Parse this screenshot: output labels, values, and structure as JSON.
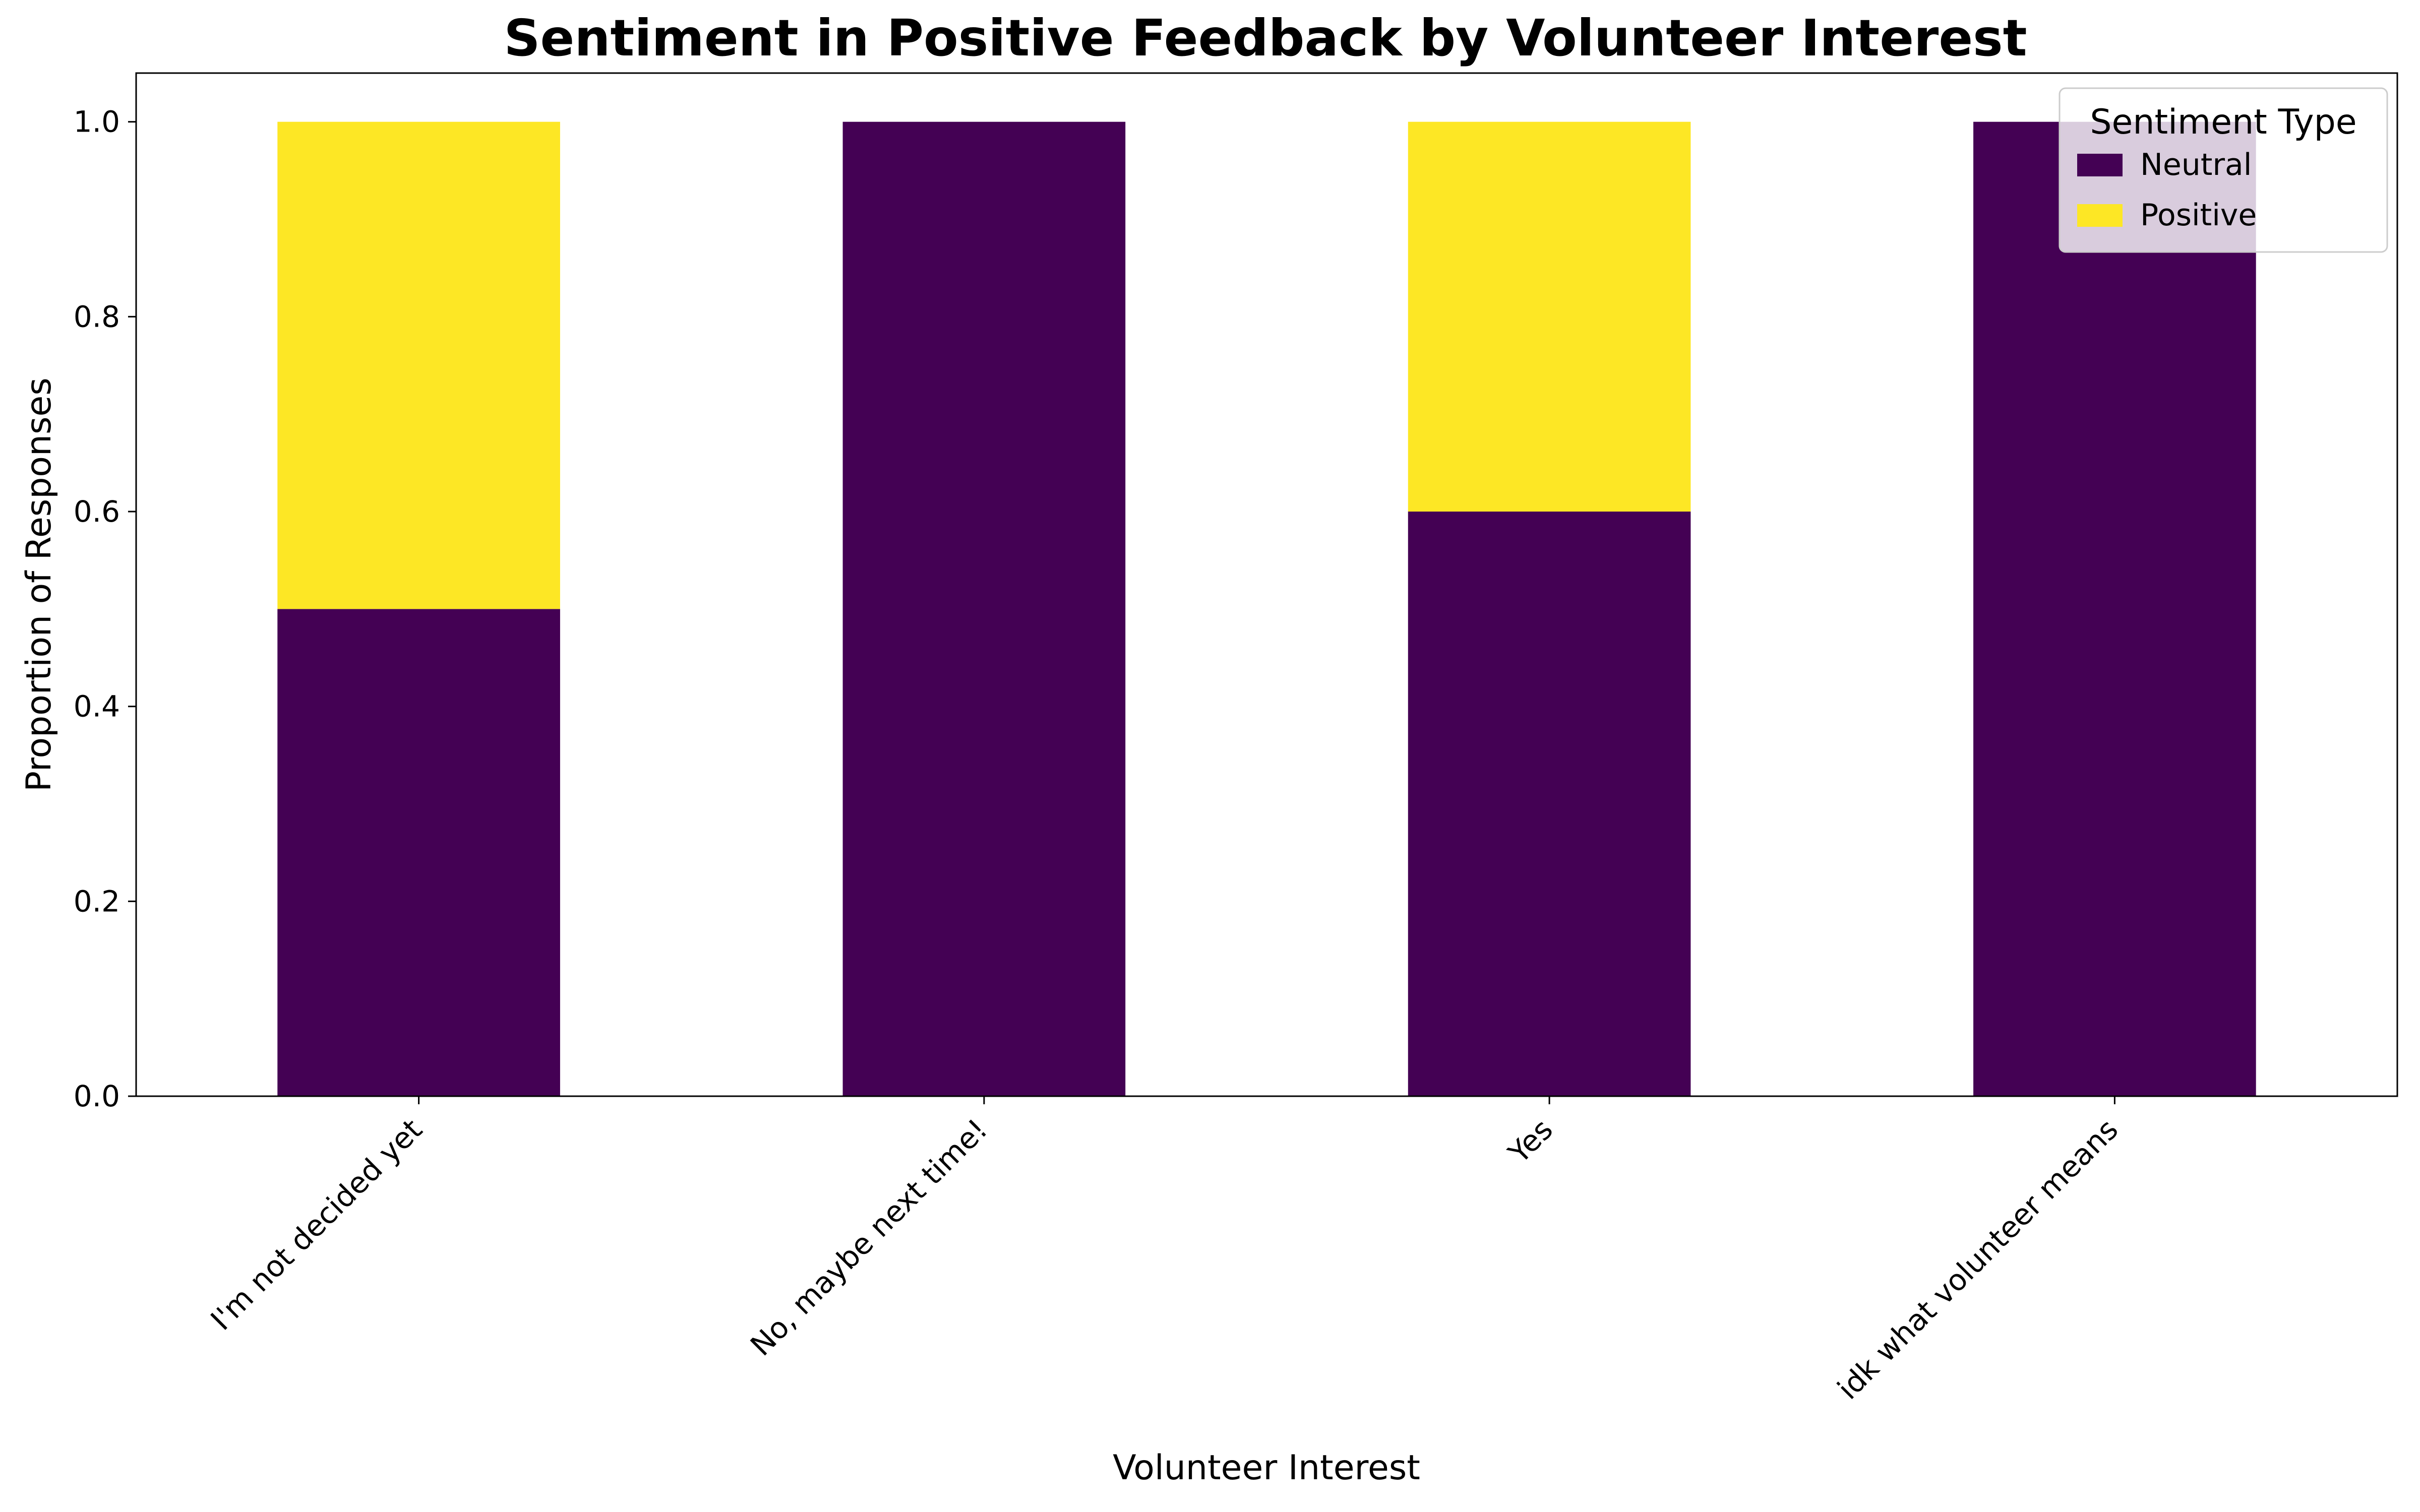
{
  "chart_data": {
    "type": "bar",
    "stacked": true,
    "title": "Sentiment in Positive Feedback by Volunteer Interest",
    "xlabel": "Volunteer Interest",
    "ylabel": "Proportion of Responses",
    "categories": [
      "I'm not decided yet",
      "No, maybe next time!",
      "Yes",
      "idk what volunteer means"
    ],
    "series": [
      {
        "name": "Neutral",
        "color": "#440154",
        "values": [
          0.5,
          1.0,
          0.6,
          1.0
        ]
      },
      {
        "name": "Positive",
        "color": "#fde725",
        "values": [
          0.5,
          0.0,
          0.4,
          0.0
        ]
      }
    ],
    "ylim": [
      0,
      1.05
    ],
    "yticks": [
      "0.0",
      "0.2",
      "0.4",
      "0.6",
      "0.8",
      "1.0"
    ],
    "grid": false,
    "legend": {
      "title": "Sentiment Type",
      "placement": "top-right"
    }
  }
}
